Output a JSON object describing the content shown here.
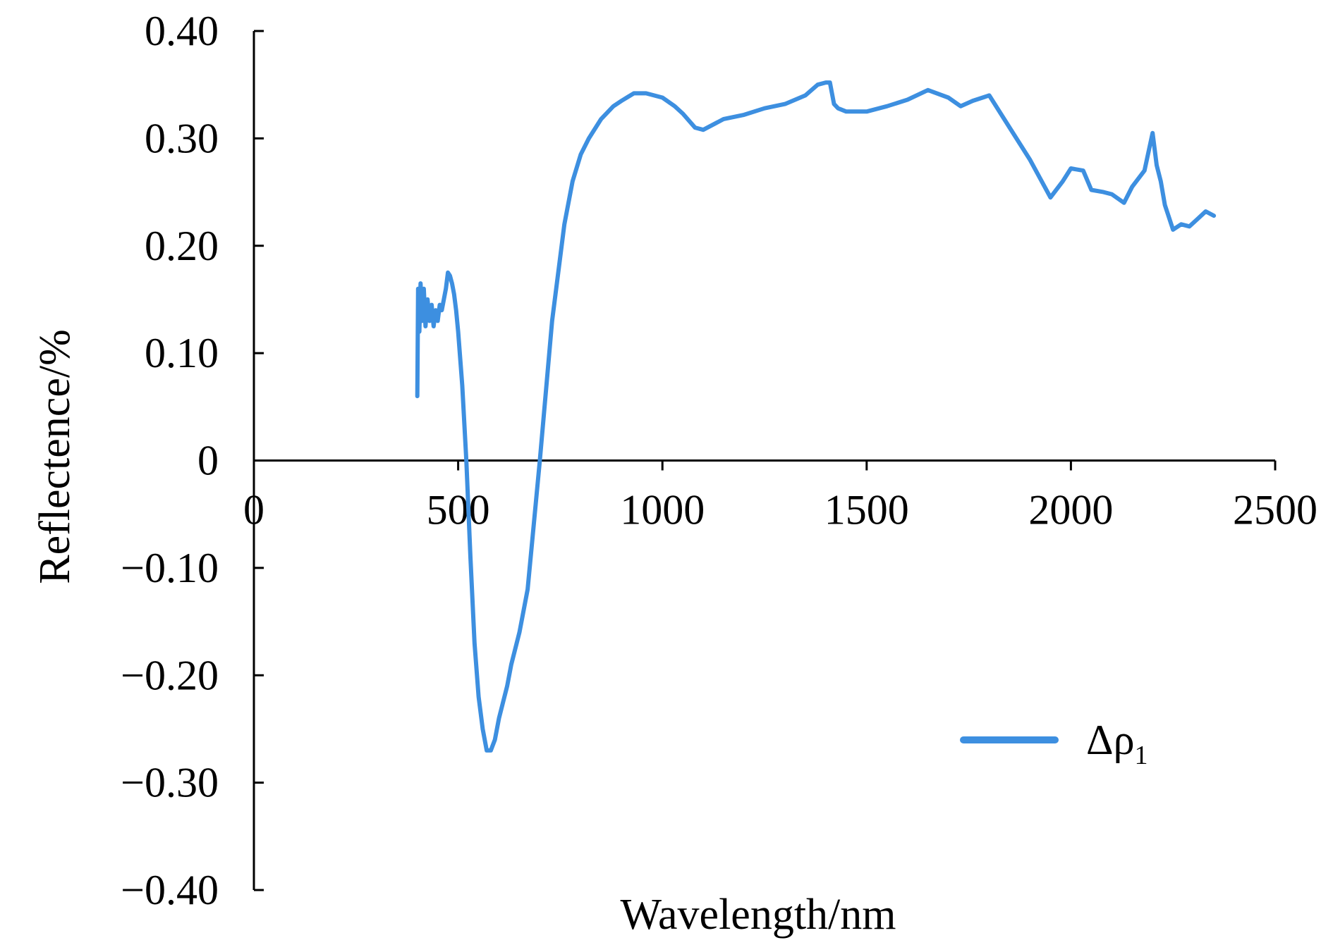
{
  "chart_data": {
    "type": "line",
    "title": "",
    "xlabel": "Wavelength/nm",
    "ylabel": "Reflectence/%",
    "xlim": [
      0,
      2500
    ],
    "ylim": [
      -0.4,
      0.4
    ],
    "x_ticks": [
      0,
      500,
      1000,
      1500,
      2000,
      2500
    ],
    "x_tick_labels": [
      "0",
      "500",
      "1000",
      "1500",
      "2000",
      "2500"
    ],
    "y_ticks": [
      0.4,
      0.3,
      0.2,
      0.1,
      0,
      -0.1,
      -0.2,
      -0.3,
      -0.4
    ],
    "y_tick_labels": [
      "0.40",
      "0.30",
      "0.20",
      "0.10",
      "0",
      "−0.10",
      "−0.20",
      "−0.30",
      "−0.40"
    ],
    "grid": false,
    "legend": {
      "position": "bottom-right",
      "symbol": "Δρ",
      "subscript": "1"
    },
    "series": [
      {
        "color": "#3d8fe0",
        "x": [
          400,
          402,
          405,
          408,
          412,
          416,
          420,
          425,
          430,
          435,
          440,
          445,
          450,
          455,
          460,
          465,
          470,
          475,
          480,
          485,
          490,
          495,
          500,
          510,
          520,
          530,
          540,
          550,
          560,
          570,
          580,
          590,
          600,
          610,
          620,
          630,
          650,
          670,
          700,
          730,
          760,
          780,
          800,
          820,
          850,
          880,
          900,
          930,
          960,
          1000,
          1030,
          1050,
          1080,
          1100,
          1150,
          1200,
          1250,
          1300,
          1350,
          1380,
          1400,
          1410,
          1420,
          1430,
          1450,
          1500,
          1550,
          1600,
          1650,
          1700,
          1730,
          1760,
          1800,
          1850,
          1900,
          1950,
          1980,
          2000,
          2030,
          2050,
          2080,
          2100,
          2130,
          2150,
          2180,
          2200,
          2210,
          2220,
          2230,
          2250,
          2270,
          2290,
          2310,
          2330,
          2350
        ],
        "y": [
          0.06,
          0.16,
          0.12,
          0.165,
          0.13,
          0.16,
          0.125,
          0.15,
          0.13,
          0.145,
          0.125,
          0.14,
          0.13,
          0.145,
          0.14,
          0.15,
          0.16,
          0.175,
          0.172,
          0.165,
          0.155,
          0.14,
          0.12,
          0.07,
          0.0,
          -0.09,
          -0.17,
          -0.22,
          -0.25,
          -0.27,
          -0.27,
          -0.26,
          -0.24,
          -0.225,
          -0.21,
          -0.19,
          -0.16,
          -0.12,
          0.0,
          0.13,
          0.22,
          0.26,
          0.285,
          0.3,
          0.318,
          0.33,
          0.335,
          0.342,
          0.342,
          0.338,
          0.33,
          0.323,
          0.31,
          0.308,
          0.318,
          0.322,
          0.328,
          0.332,
          0.34,
          0.35,
          0.352,
          0.352,
          0.332,
          0.328,
          0.325,
          0.325,
          0.33,
          0.336,
          0.345,
          0.338,
          0.33,
          0.335,
          0.34,
          0.31,
          0.28,
          0.245,
          0.26,
          0.272,
          0.27,
          0.252,
          0.25,
          0.248,
          0.24,
          0.255,
          0.27,
          0.305,
          0.275,
          0.26,
          0.238,
          0.215,
          0.22,
          0.218,
          0.225,
          0.232,
          0.228
        ]
      }
    ]
  }
}
